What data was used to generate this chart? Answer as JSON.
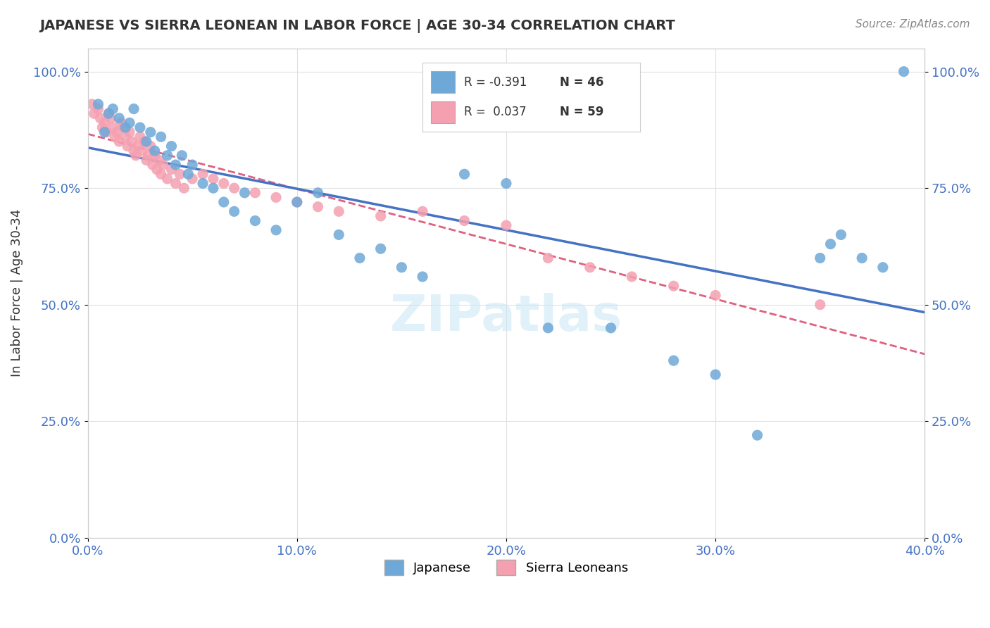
{
  "title": "JAPANESE VS SIERRA LEONEAN IN LABOR FORCE | AGE 30-34 CORRELATION CHART",
  "source_text": "Source: ZipAtlas.com",
  "xlabel_ticks": [
    "0.0%",
    "10.0%",
    "20.0%",
    "30.0%",
    "40.0%"
  ],
  "xlabel_values": [
    0.0,
    0.1,
    0.2,
    0.3,
    0.4
  ],
  "ylabel_ticks": [
    "0.0%",
    "25.0%",
    "50.0%",
    "75.0%",
    "100.0%"
  ],
  "ylabel_values": [
    0.0,
    0.25,
    0.5,
    0.75,
    1.0
  ],
  "ylabel_label": "In Labor Force | Age 30-34",
  "watermark": "ZIPatlas",
  "japanese_color": "#6ea8d8",
  "sierra_color": "#f4a0b0",
  "trendline_japanese_color": "#4472c4",
  "trendline_sierra_color": "#e06080",
  "japanese_scatter": {
    "x": [
      0.005,
      0.008,
      0.01,
      0.012,
      0.015,
      0.018,
      0.02,
      0.022,
      0.025,
      0.028,
      0.03,
      0.032,
      0.035,
      0.038,
      0.04,
      0.042,
      0.045,
      0.048,
      0.05,
      0.055,
      0.06,
      0.065,
      0.07,
      0.075,
      0.08,
      0.09,
      0.1,
      0.11,
      0.12,
      0.13,
      0.14,
      0.15,
      0.16,
      0.18,
      0.2,
      0.22,
      0.25,
      0.28,
      0.3,
      0.32,
      0.35,
      0.355,
      0.36,
      0.37,
      0.38,
      0.39
    ],
    "y": [
      0.93,
      0.87,
      0.91,
      0.92,
      0.9,
      0.88,
      0.89,
      0.92,
      0.88,
      0.85,
      0.87,
      0.83,
      0.86,
      0.82,
      0.84,
      0.8,
      0.82,
      0.78,
      0.8,
      0.76,
      0.75,
      0.72,
      0.7,
      0.74,
      0.68,
      0.66,
      0.72,
      0.74,
      0.65,
      0.6,
      0.62,
      0.58,
      0.56,
      0.78,
      0.76,
      0.45,
      0.45,
      0.38,
      0.35,
      0.22,
      0.6,
      0.63,
      0.65,
      0.6,
      0.58,
      1.0
    ]
  },
  "sierra_scatter": {
    "x": [
      0.002,
      0.003,
      0.005,
      0.006,
      0.007,
      0.008,
      0.009,
      0.01,
      0.011,
      0.012,
      0.013,
      0.014,
      0.015,
      0.016,
      0.017,
      0.018,
      0.019,
      0.02,
      0.021,
      0.022,
      0.023,
      0.024,
      0.025,
      0.026,
      0.027,
      0.028,
      0.029,
      0.03,
      0.031,
      0.032,
      0.033,
      0.034,
      0.035,
      0.036,
      0.038,
      0.04,
      0.042,
      0.044,
      0.046,
      0.05,
      0.055,
      0.06,
      0.065,
      0.07,
      0.08,
      0.09,
      0.1,
      0.11,
      0.12,
      0.14,
      0.16,
      0.18,
      0.2,
      0.22,
      0.24,
      0.26,
      0.28,
      0.3,
      0.35
    ],
    "y": [
      0.93,
      0.91,
      0.92,
      0.9,
      0.88,
      0.89,
      0.87,
      0.91,
      0.9,
      0.88,
      0.86,
      0.87,
      0.85,
      0.89,
      0.88,
      0.86,
      0.84,
      0.87,
      0.85,
      0.83,
      0.82,
      0.84,
      0.86,
      0.83,
      0.85,
      0.81,
      0.82,
      0.84,
      0.8,
      0.82,
      0.79,
      0.81,
      0.78,
      0.8,
      0.77,
      0.79,
      0.76,
      0.78,
      0.75,
      0.77,
      0.78,
      0.77,
      0.76,
      0.75,
      0.74,
      0.73,
      0.72,
      0.71,
      0.7,
      0.69,
      0.7,
      0.68,
      0.67,
      0.6,
      0.58,
      0.56,
      0.54,
      0.52,
      0.5
    ]
  },
  "japanese_R": -0.391,
  "japanese_N": 46,
  "sierra_R": 0.037,
  "sierra_N": 59,
  "xlim": [
    0.0,
    0.4
  ],
  "ylim": [
    0.0,
    1.05
  ],
  "background_color": "#ffffff",
  "grid_color": "#e0e0e0"
}
